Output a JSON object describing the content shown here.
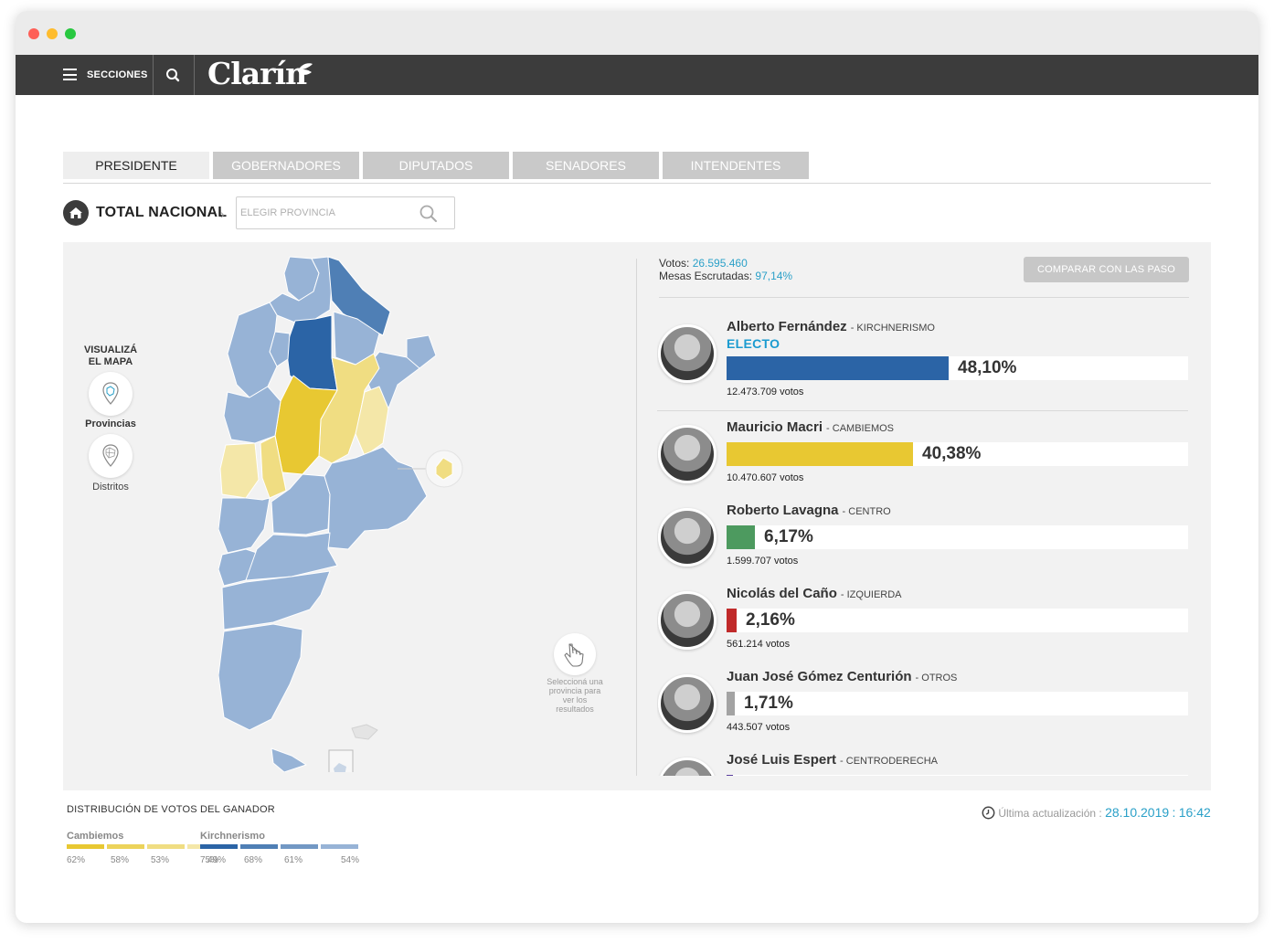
{
  "header": {
    "sections_label": "SECCIONES",
    "logo_text": "Clarín"
  },
  "tabs": [
    {
      "label": "PRESIDENTE",
      "active": true
    },
    {
      "label": "GOBERNADORES",
      "active": false
    },
    {
      "label": "DIPUTADOS",
      "active": false
    },
    {
      "label": "SENADORES",
      "active": false
    },
    {
      "label": "INTENDENTES",
      "active": false
    }
  ],
  "breadcrumb": {
    "title": "TOTAL NACIONAL",
    "province_placeholder": "ELEGIR PROVINCIA"
  },
  "map_controls": {
    "title_line1": "VISUALIZÁ",
    "title_line2": "EL MAPA",
    "provinces_label": "Provincias",
    "districts_label": "Distritos",
    "hint_line1": "Seleccioná una",
    "hint_line2": "provincia para",
    "hint_line3": "ver los",
    "hint_line4": "resultados"
  },
  "summary": {
    "votes_label": "Votos:",
    "votes_value": "26.595.460",
    "tables_label": "Mesas Escrutadas:",
    "tables_value": "97,14%",
    "compare_button": "COMPARAR CON LAS PASO"
  },
  "candidates": [
    {
      "name": "Alberto Fernández",
      "party": "KIRCHNERISMO",
      "status": "ELECTO",
      "percent_label": "48,10%",
      "percent": 48.1,
      "votes": "12.473.709 votos",
      "color": "#2b64a6"
    },
    {
      "name": "Mauricio Macri",
      "party": "CAMBIEMOS",
      "status": "",
      "percent_label": "40,38%",
      "percent": 40.38,
      "votes": "10.470.607 votos",
      "color": "#e8c832"
    },
    {
      "name": "Roberto Lavagna",
      "party": "CENTRO",
      "status": "",
      "percent_label": "6,17%",
      "percent": 6.17,
      "votes": "1.599.707 votos",
      "color": "#4d9a5f"
    },
    {
      "name": "Nicolás del Caño",
      "party": "IZQUIERDA",
      "status": "",
      "percent_label": "2,16%",
      "percent": 2.16,
      "votes": "561.214 votos",
      "color": "#c02a2a"
    },
    {
      "name": "Juan José Gómez Centurión",
      "party": "OTROS",
      "status": "",
      "percent_label": "1,71%",
      "percent": 1.71,
      "votes": "443.507 votos",
      "color": "#a3a3a3"
    },
    {
      "name": "José Luis Espert",
      "party": "CENTRODERECHA",
      "status": "",
      "percent_label": "",
      "percent": 1.47,
      "votes": "",
      "color": "#5b3fa0"
    }
  ],
  "distribution": {
    "title": "DISTRIBUCIÓN DE VOTOS DEL GANADOR",
    "groups": [
      {
        "name": "Cambiemos",
        "levels": [
          {
            "label": "62%",
            "color": "#e8c832"
          },
          {
            "label": "58%",
            "color": "#ecd35a"
          },
          {
            "label": "53%",
            "color": "#f0dd82"
          },
          {
            "label": "49%",
            "color": "#f4e7a8"
          }
        ]
      },
      {
        "name": "Kirchnerismo",
        "levels": [
          {
            "label": "75%",
            "color": "#2b64a6"
          },
          {
            "label": "68%",
            "color": "#4f7fb5"
          },
          {
            "label": "61%",
            "color": "#7298c4"
          },
          {
            "label": "54%",
            "color": "#97b3d6"
          }
        ]
      }
    ]
  },
  "update": {
    "label": "Última actualización :",
    "date": "28.10.2019",
    "separator": ":",
    "time": "16:42"
  }
}
